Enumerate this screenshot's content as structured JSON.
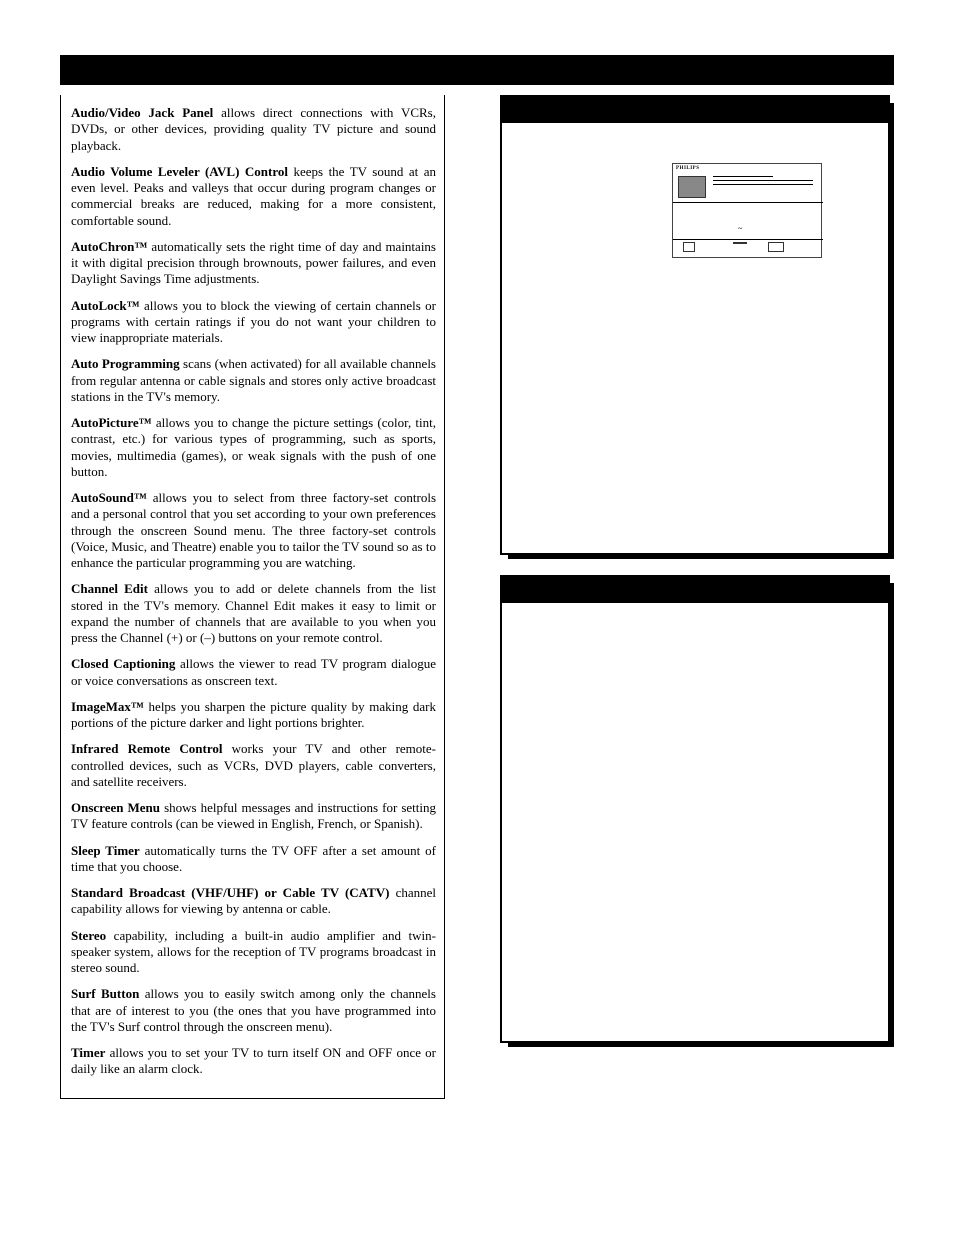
{
  "features": [
    {
      "title": "Audio/Video Jack Panel",
      "body": "  allows direct connections with VCRs, DVDs, or other devices, providing quality TV picture and sound playback."
    },
    {
      "title": "Audio Volume Leveler (AVL) Control",
      "body": " keeps the TV sound at an even level.  Peaks and valleys that occur during program changes or commercial breaks are reduced, making for a more consistent, comfortable sound."
    },
    {
      "title": "AutoChron™",
      "body": "  automatically sets the right time of day and maintains it with digital precision through brownouts, power failures, and even Daylight Savings Time adjustments."
    },
    {
      "title": "AutoLock™",
      "body": " allows you to block the viewing of certain channels or programs with certain ratings if you do not want your children to view inappropriate materials."
    },
    {
      "title": "Auto Programming",
      "body": " scans (when activated) for all available channels from regular antenna or cable signals and stores only active broadcast stations in the TV's memory."
    },
    {
      "title": "AutoPicture™",
      "body": " allows you to change the picture settings (color, tint, contrast, etc.) for various types of programming, such as sports, movies, multimedia (games), or weak signals with the push of one button."
    },
    {
      "title": "AutoSound™",
      "body": " allows you to select from three factory-set controls and a personal control that you set according to your own preferences through the onscreen Sound menu. The three factory-set controls (Voice, Music, and Theatre) enable you to tailor the TV sound so as to enhance the particular programming you are watching."
    },
    {
      "title": "Channel Edit",
      "body": " allows you to add or delete channels from the list stored in the TV's memory.  Channel Edit makes it easy to limit or expand the number of channels that are available to you when you press the Channel (+) or (–) buttons on your remote control."
    },
    {
      "title": "Closed Captioning",
      "body": " allows the viewer to read TV program dialogue or voice conversations as onscreen text."
    },
    {
      "title": "ImageMax™",
      "body": " helps you sharpen the picture quality by making dark portions of the picture darker and light portions brighter."
    },
    {
      "title": "Infrared Remote Control",
      "body": " works your TV and other remote-controlled devices, such as VCRs, DVD players, cable converters, and satellite receivers."
    },
    {
      "title": "Onscreen Menu",
      "body": " shows helpful messages and instructions for setting TV feature controls (can be viewed in English, French, or Spanish)."
    },
    {
      "title": "Sleep Timer",
      "body": " automatically turns the TV OFF after a set amount of time that you choose."
    },
    {
      "title": "Standard Broadcast (VHF/UHF) or Cable TV (CATV)",
      "body": " channel capability allows for viewing by antenna or cable."
    },
    {
      "title": "Stereo",
      "body": " capability, including a built-in audio amplifier and twin-speaker system, allows for the reception of TV programs broadcast in stereo sound."
    },
    {
      "title": "Surf Button",
      "body": " allows you to easily switch among only the channels that are of interest to you (the ones that you have programmed into the TV's Surf control through the onscreen menu)."
    },
    {
      "title": "Timer",
      "body": " allows you to set your TV to turn itself ON and OFF once or daily like an alarm clock."
    }
  ],
  "thumb_brand": "PHILIPS",
  "colors": {
    "bg": "#ffffff",
    "text": "#000000",
    "bar": "#000000"
  }
}
